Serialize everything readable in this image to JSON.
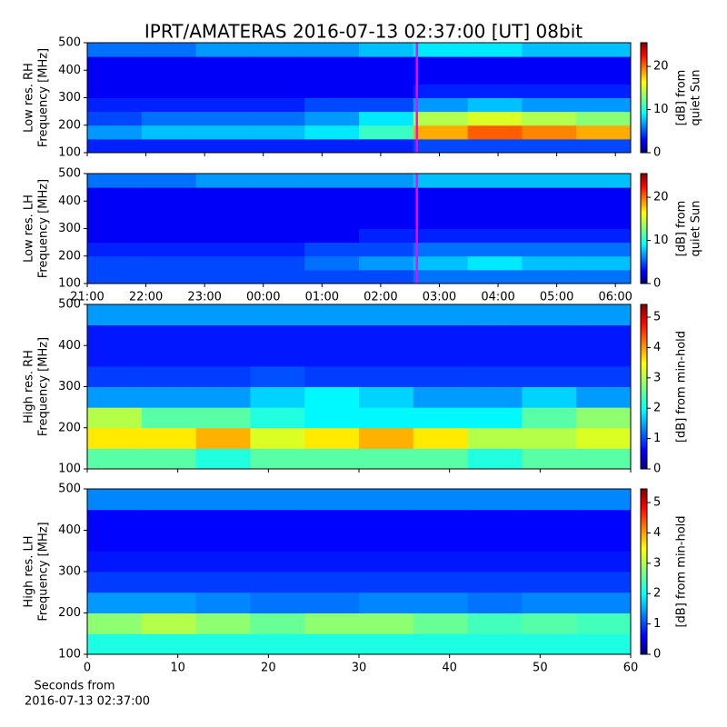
{
  "title": "IPRT/AMATERAS 2016-07-13 02:37:00 [UT]   08bit",
  "chart_data": [
    {
      "type": "spectrogram",
      "ylabel": [
        "Low res. RH",
        "Frequency [MHz]"
      ],
      "colorbar_label": [
        "[dB] from",
        "quiet Sun"
      ],
      "colormap": "jet",
      "xlim": [
        21,
        30.26
      ],
      "xticks": [
        21,
        22,
        23,
        24,
        25,
        26,
        27,
        28,
        29,
        30
      ],
      "ylim": [
        100,
        500
      ],
      "yticks": [
        100,
        200,
        300,
        400,
        500
      ],
      "clim": [
        0,
        25.5
      ],
      "cticks": [
        0,
        10,
        20
      ],
      "marker_x": 26.617,
      "marker_color": "#ff00ff",
      "z": [
        [
          4,
          4,
          4,
          4,
          4,
          4,
          5,
          5,
          5,
          5
        ],
        [
          7,
          8,
          8,
          8,
          9,
          11,
          18,
          20,
          19,
          18
        ],
        [
          5,
          6,
          6,
          6,
          7,
          9,
          14,
          15,
          14,
          13
        ],
        [
          4,
          4,
          4,
          4,
          5,
          5,
          7,
          8,
          7,
          7
        ],
        [
          3,
          3,
          3,
          3,
          3,
          3,
          4,
          4,
          4,
          4
        ],
        [
          3,
          3,
          3,
          3,
          3,
          3,
          3,
          3,
          3,
          3
        ],
        [
          3,
          3,
          3,
          3,
          3,
          3,
          3,
          3,
          3,
          3
        ],
        [
          6,
          6,
          7,
          7,
          7,
          8,
          9,
          9,
          8,
          8
        ]
      ]
    },
    {
      "type": "spectrogram",
      "ylabel": [
        "Low res. LH",
        "Frequency [MHz]"
      ],
      "colorbar_label": [
        "[dB] from",
        "quiet Sun"
      ],
      "colormap": "jet",
      "xlim": [
        21,
        30.26
      ],
      "xticks": [
        {
          "value": 21,
          "label": "21:00"
        },
        {
          "value": 22,
          "label": "22:00"
        },
        {
          "value": 23,
          "label": "23:00"
        },
        {
          "value": 24,
          "label": "00:00"
        },
        {
          "value": 25,
          "label": "01:00"
        },
        {
          "value": 26,
          "label": "02:00"
        },
        {
          "value": 27,
          "label": "03:00"
        },
        {
          "value": 28,
          "label": "04:00"
        },
        {
          "value": 29,
          "label": "05:00"
        },
        {
          "value": 30,
          "label": "06:00"
        }
      ],
      "ylim": [
        100,
        500
      ],
      "yticks": [
        100,
        200,
        300,
        400,
        500
      ],
      "clim": [
        0,
        25.5
      ],
      "cticks": [
        0,
        10,
        20
      ],
      "marker_x": 26.617,
      "marker_color": "#ff00ff",
      "z": [
        [
          5,
          5,
          5,
          5,
          5,
          5,
          6,
          6,
          6,
          6
        ],
        [
          5,
          5,
          5,
          5,
          6,
          7,
          8,
          9,
          8,
          8
        ],
        [
          4,
          4,
          4,
          4,
          5,
          5,
          6,
          6,
          6,
          6
        ],
        [
          3,
          3,
          3,
          3,
          3,
          4,
          4,
          4,
          4,
          4
        ],
        [
          3,
          3,
          3,
          3,
          3,
          3,
          3,
          3,
          3,
          3
        ],
        [
          3,
          3,
          3,
          3,
          3,
          3,
          3,
          3,
          3,
          3
        ],
        [
          3,
          3,
          3,
          3,
          3,
          3,
          3,
          3,
          3,
          3
        ],
        [
          6,
          6,
          7,
          7,
          7,
          7,
          8,
          8,
          8,
          8
        ]
      ]
    },
    {
      "type": "spectrogram",
      "ylabel": [
        "High res. RH",
        "Frequency [MHz]"
      ],
      "colorbar_label": [
        "[dB] from min-hold"
      ],
      "colormap": "jet",
      "xlim": [
        0,
        60
      ],
      "xticks": [
        0,
        10,
        20,
        30,
        40,
        50,
        60
      ],
      "ylim": [
        100,
        500
      ],
      "yticks": [
        100,
        200,
        300,
        400,
        500
      ],
      "clim": [
        0,
        5.42
      ],
      "cticks": [
        0,
        1,
        2,
        3,
        4,
        5
      ],
      "z": [
        [
          2.5,
          2.5,
          2.2,
          2.5,
          2.5,
          2.5,
          2.5,
          2.2,
          2.5,
          2.5
        ],
        [
          3.5,
          3.5,
          3.8,
          3.2,
          3.5,
          3.8,
          3.5,
          3,
          3,
          3.2
        ],
        [
          3,
          2.5,
          2.5,
          2.2,
          2,
          2,
          2,
          2,
          2.5,
          2.8
        ],
        [
          1.5,
          1.5,
          1.5,
          1.8,
          2,
          1.8,
          1.5,
          1.5,
          1.8,
          1.5
        ],
        [
          1,
          1,
          1,
          1.1,
          1,
          1,
          1,
          1,
          1,
          1
        ],
        [
          0.8,
          0.8,
          0.8,
          0.8,
          0.8,
          0.8,
          0.8,
          0.8,
          0.8,
          0.8
        ],
        [
          0.8,
          0.8,
          0.8,
          0.8,
          0.8,
          0.8,
          0.8,
          0.8,
          0.8,
          0.8
        ],
        [
          1.5,
          1.5,
          1.5,
          1.5,
          1.5,
          1.5,
          1.5,
          1.5,
          1.5,
          1.5
        ]
      ]
    },
    {
      "type": "spectrogram",
      "ylabel": [
        "High res. LH",
        "Frequency [MHz]"
      ],
      "colorbar_label": [
        "[dB] from min-hold"
      ],
      "colormap": "jet",
      "xlabel": [
        "Seconds from",
        "2016-07-13 02:37:00"
      ],
      "xlim": [
        0,
        60
      ],
      "xticks": [
        0,
        10,
        20,
        30,
        40,
        50,
        60
      ],
      "ylim": [
        100,
        500
      ],
      "yticks": [
        100,
        200,
        300,
        400,
        500
      ],
      "clim": [
        0,
        5.45
      ],
      "cticks": [
        0,
        1,
        2,
        3,
        4,
        5
      ],
      "z": [
        [
          2.2,
          2.2,
          2.2,
          2.2,
          2.2,
          2.2,
          2.2,
          2.2,
          2.2,
          2.2
        ],
        [
          2.8,
          3,
          2.8,
          2.6,
          2.8,
          2.8,
          2.6,
          2.4,
          2.5,
          2.4
        ],
        [
          1.5,
          1.5,
          1.4,
          1.3,
          1.3,
          1.4,
          1.4,
          1.3,
          1.4,
          1.4
        ],
        [
          1,
          1,
          1,
          1,
          1,
          1,
          1,
          1,
          1,
          1
        ],
        [
          0.8,
          0.8,
          0.8,
          0.8,
          0.8,
          0.8,
          0.8,
          0.8,
          0.8,
          0.8
        ],
        [
          0.7,
          0.7,
          0.7,
          0.7,
          0.7,
          0.7,
          0.7,
          0.7,
          0.7,
          0.7
        ],
        [
          0.7,
          0.7,
          0.7,
          0.7,
          0.7,
          0.7,
          0.7,
          0.7,
          0.7,
          0.7
        ],
        [
          1.4,
          1.4,
          1.4,
          1.4,
          1.4,
          1.4,
          1.4,
          1.4,
          1.4,
          1.4
        ]
      ]
    }
  ]
}
